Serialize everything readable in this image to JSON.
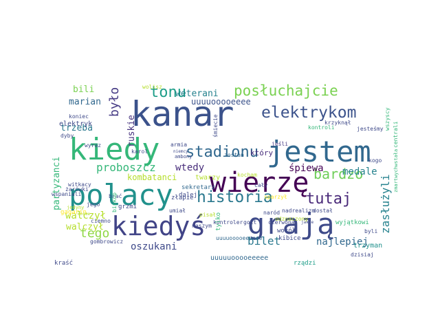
{
  "colormap": "viridis",
  "background": "#ffffff",
  "words": [
    {
      "text": "kanar",
      "color": "#3b528b"
    },
    {
      "text": "jestem",
      "color": "#31688e"
    },
    {
      "text": "kiedy",
      "color": "#35b779"
    },
    {
      "text": "wierzę",
      "color": "#440154"
    },
    {
      "text": "polacy",
      "color": "#21918c"
    },
    {
      "text": "grają",
      "color": "#3e4a89"
    },
    {
      "text": "kiedyś",
      "color": "#414487"
    },
    {
      "text": "elektrykom",
      "color": "#3b528b"
    },
    {
      "text": "posłuchajcie",
      "color": "#7ad151"
    },
    {
      "text": "historia",
      "color": "#2a788e"
    },
    {
      "text": "tutaj",
      "color": "#482878"
    },
    {
      "text": "tonu",
      "color": "#1f9e89"
    },
    {
      "text": "stadionu",
      "color": "#31688e"
    },
    {
      "text": "bardzo",
      "color": "#6ece58"
    },
    {
      "text": "było",
      "color": "#443983"
    },
    {
      "text": "tego",
      "color": "#8fd744"
    },
    {
      "text": "zasłużyli",
      "color": "#26828e"
    },
    {
      "text": "proboszcz",
      "color": "#35b779"
    },
    {
      "text": "bilet",
      "color": "#2a788e"
    },
    {
      "text": "oszukani",
      "color": "#3e4989"
    },
    {
      "text": "najlepiej",
      "color": "#31688e"
    },
    {
      "text": "walczył",
      "color": "#b5de2b"
    },
    {
      "text": "partyzanci",
      "color": "#35b779"
    },
    {
      "text": "kombatanci",
      "color": "#b5de2b"
    },
    {
      "text": "wtedy",
      "color": "#472c7a"
    },
    {
      "text": "weterani",
      "color": "#26828e"
    },
    {
      "text": "uuuuooooeeee",
      "color": "#3b528b"
    },
    {
      "text": "marian",
      "color": "#31688e"
    },
    {
      "text": "bili",
      "color": "#7ad151"
    },
    {
      "text": "trzeba",
      "color": "#2a788e"
    },
    {
      "text": "ruskie",
      "color": "#46327e"
    },
    {
      "text": "śpiewa",
      "color": "#440154"
    },
    {
      "text": "medale",
      "color": "#26828e"
    },
    {
      "text": "elektryk",
      "color": "#3e4989"
    },
    {
      "text": "walczył",
      "color": "#b5de2b"
    },
    {
      "text": "uuuuuooooeeeee",
      "color": "#31688e"
    },
    {
      "text": "twarzy",
      "color": "#b5de2b"
    },
    {
      "text": "kocham",
      "color": "#b5de2b"
    },
    {
      "text": "który",
      "color": "#472d7b"
    },
    {
      "text": "zostań",
      "color": "#31688e"
    },
    {
      "text": "jeśli",
      "color": "#443983"
    },
    {
      "text": "sekretarz",
      "color": "#31688e"
    },
    {
      "text": "cały",
      "color": "#3e4989"
    },
    {
      "text": "sparzył",
      "color": "#fde725"
    },
    {
      "text": "nadrealizm",
      "color": "#3e4989"
    },
    {
      "text": "dostał",
      "color": "#3e4989"
    },
    {
      "text": "kogo",
      "color": "#3e4989"
    },
    {
      "text": "wyjątkowi",
      "color": "#35b779"
    },
    {
      "text": "byli",
      "color": "#3e4989"
    },
    {
      "text": "trzyman",
      "color": "#21918c"
    },
    {
      "text": "dzisiaj",
      "color": "#3e4989"
    },
    {
      "text": "rządzi",
      "color": "#1f9e89"
    },
    {
      "text": "kibice",
      "color": "#3e4989"
    },
    {
      "text": "kontroler",
      "color": "#3e4989"
    },
    {
      "text": "gott",
      "color": "#3e4989"
    },
    {
      "text": "czerwona",
      "color": "#3e4989"
    },
    {
      "text": "jakie",
      "color": "#3e4989"
    },
    {
      "text": "naszym",
      "color": "#3e4989"
    },
    {
      "text": "pisał",
      "color": "#b5de2b"
    },
    {
      "text": "tylko",
      "color": "#35b779"
    },
    {
      "text": "złapie",
      "color": "#3e4989"
    },
    {
      "text": "umiał",
      "color": "#3e4989"
    },
    {
      "text": "grzmi",
      "color": "#3e4989"
    },
    {
      "text": "ciemno",
      "color": "#3e4989"
    },
    {
      "text": "brać",
      "color": "#3e4989"
    },
    {
      "text": "jego",
      "color": "#3e4989"
    },
    {
      "text": "wspaniali",
      "color": "#3e4989"
    },
    {
      "text": "gagarin",
      "color": "#fde725"
    },
    {
      "text": "kraść",
      "color": "#3e4989"
    },
    {
      "text": "gombrowicz",
      "color": "#3e4989"
    },
    {
      "text": "uuuuooooeeeeee",
      "color": "#31688e"
    },
    {
      "text": "witkacy",
      "color": "#3e4989"
    },
    {
      "text": "żarówki",
      "color": "#3e4989"
    },
    {
      "text": "jedyny",
      "color": "#b5de2b"
    },
    {
      "text": "dyby",
      "color": "#3e4989"
    },
    {
      "text": "wyraz",
      "color": "#3e4989"
    },
    {
      "text": "karol",
      "color": "#3e4989"
    },
    {
      "text": "armia",
      "color": "#3e4989"
    },
    {
      "text": "ambony",
      "color": "#3e4989"
    },
    {
      "text": "niemcy",
      "color": "#3e4989"
    },
    {
      "text": "śmiecie",
      "color": "#3e4989"
    },
    {
      "text": "koniec",
      "color": "#3e4989"
    },
    {
      "text": "morze",
      "color": "#b5de2b"
    },
    {
      "text": "wolisz",
      "color": "#b5de2b"
    },
    {
      "text": "dalej",
      "color": "#3e4989"
    },
    {
      "text": "naród",
      "color": "#3e4989"
    },
    {
      "text": "odznaczony",
      "color": "#b5de2b"
    },
    {
      "text": "krzyknął",
      "color": "#3e4989"
    },
    {
      "text": "jesteśmy",
      "color": "#3e4989"
    },
    {
      "text": "kontroli",
      "color": "#35b779"
    },
    {
      "text": "wszyscy",
      "color": "#35b779"
    },
    {
      "text": "centrali",
      "color": "#35b779"
    },
    {
      "text": "zmartwychwstała",
      "color": "#35b779"
    },
    {
      "text": "biskup",
      "color": "#35b779"
    },
    {
      "text": "wokół",
      "color": "#3e4989"
    }
  ]
}
